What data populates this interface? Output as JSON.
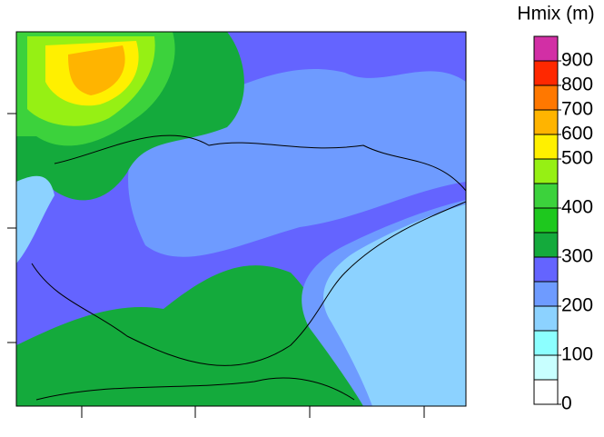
{
  "colorbar": {
    "title": "Hmix (m)",
    "levels": [
      0,
      50,
      100,
      150,
      200,
      250,
      300,
      350,
      400,
      450,
      500,
      600,
      700,
      800,
      900,
      1000
    ],
    "colors": [
      "#ffffff",
      "#c8ffff",
      "#8cffff",
      "#8cd2ff",
      "#6e9bff",
      "#6464ff",
      "#14aa3c",
      "#1ec81e",
      "#3cd23c",
      "#96f014",
      "#fff000",
      "#ffb400",
      "#ff7800",
      "#ff2800",
      "#d22fa5"
    ],
    "ticks": [
      0,
      100,
      200,
      300,
      400,
      500,
      600,
      700,
      800,
      900
    ]
  }
}
